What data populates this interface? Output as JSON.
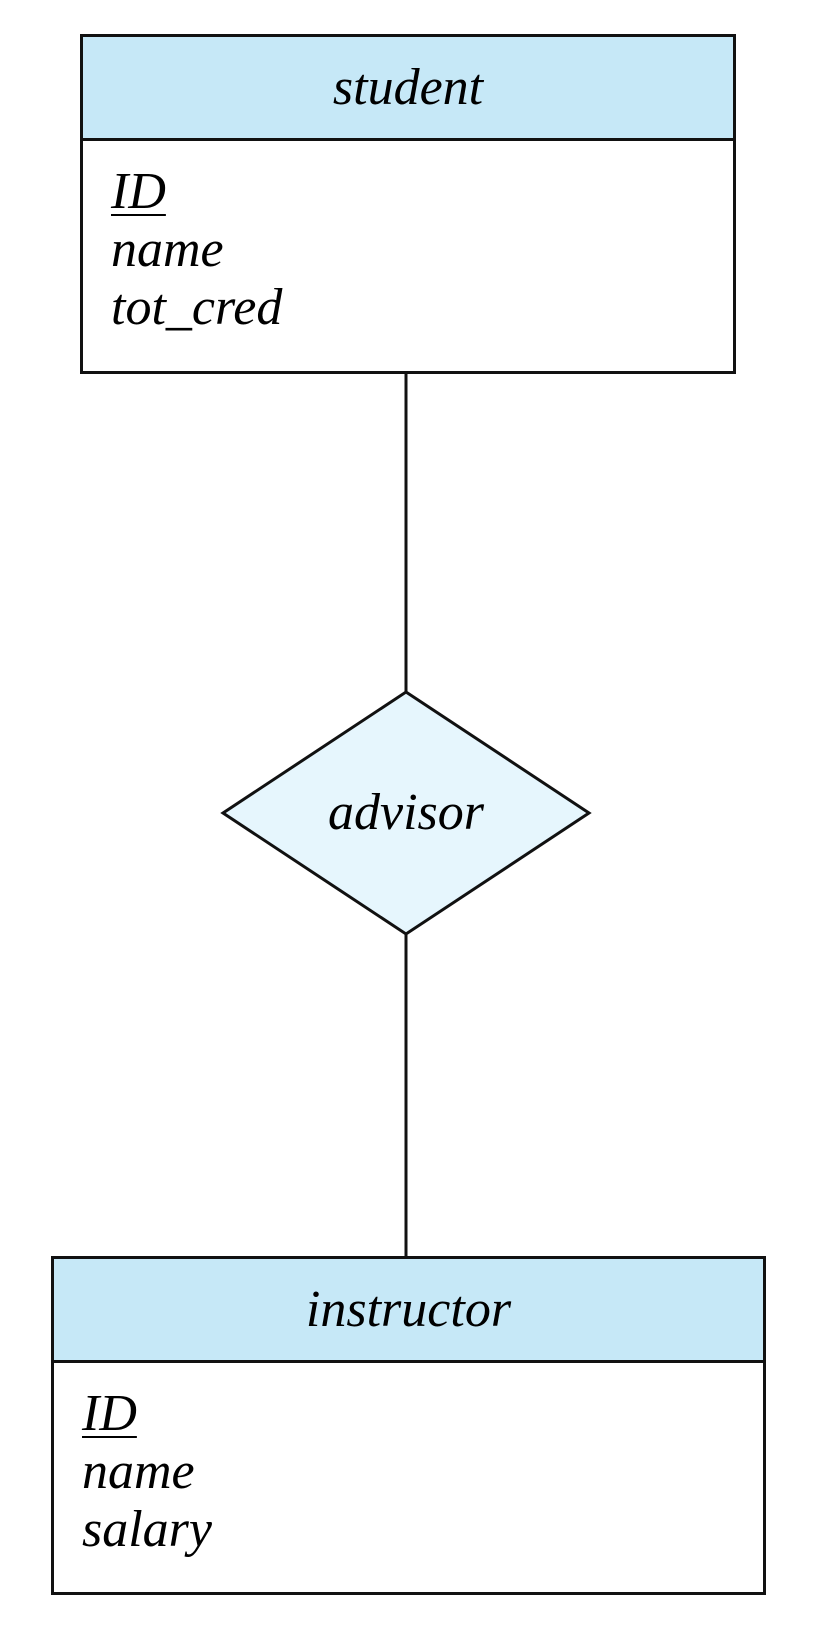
{
  "colors": {
    "entity_header_fill": "#c6e8f7",
    "relationship_fill": "#e6f6fd",
    "stroke": "#111111"
  },
  "entities": {
    "student": {
      "name": "student",
      "attributes": [
        {
          "label": "ID",
          "primary_key": true
        },
        {
          "label": "name",
          "primary_key": false
        },
        {
          "label": "tot_cred",
          "primary_key": false
        }
      ]
    },
    "instructor": {
      "name": "instructor",
      "attributes": [
        {
          "label": "ID",
          "primary_key": true
        },
        {
          "label": "name",
          "primary_key": false
        },
        {
          "label": "salary",
          "primary_key": false
        }
      ]
    }
  },
  "relationship": {
    "name": "advisor"
  }
}
